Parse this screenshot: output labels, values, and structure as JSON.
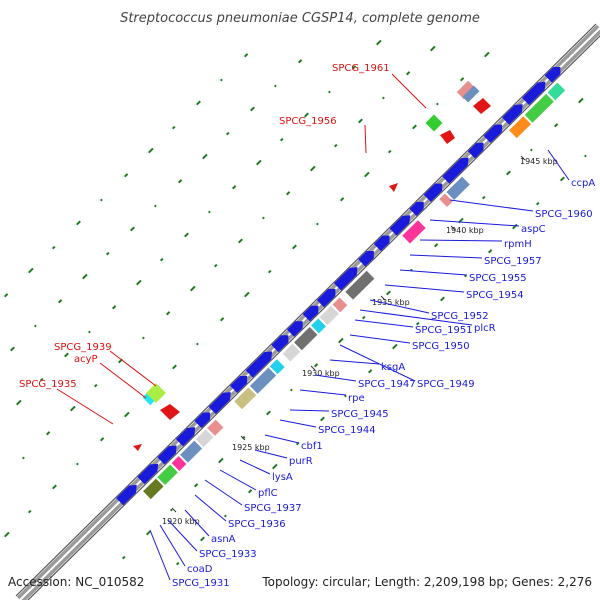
{
  "title": "Streptococcus pneumoniae CGSP14, complete genome",
  "footer": {
    "accession": "Accession: NC_010582",
    "topology": "Topology: circular; Length: 2,209,198 bp; Genes: 2,276"
  },
  "colors": {
    "forward_gene": "#1a1adb",
    "reverse_gene": "#e01515",
    "rna_label": "#dd1111",
    "gene_label": "#1a1adb",
    "backbone": "#888888",
    "gc_tick": "#1f7a1f"
  },
  "scale_ticks": [
    "1920 kbp",
    "1925 kbp",
    "1930 kbp",
    "1935 kbp",
    "1940 kbp",
    "1945 kbp"
  ],
  "blue_labels": [
    "SPCG_1931",
    "coaD",
    "SPCG_1933",
    "asnA",
    "SPCG_1936",
    "SPCG_1937",
    "pflC",
    "lysA",
    "purR",
    "cbf1",
    "SPCG_1944",
    "SPCG_1945",
    "rpe",
    "SPCG_1947",
    "ksgA",
    "SPCG_1949",
    "SPCG_1950",
    "SPCG_1951",
    "plcR",
    "SPCG_1952",
    "SPCG_1954",
    "SPCG_1955",
    "SPCG_1957",
    "rpmH",
    "aspC",
    "SPCG_1960",
    "ccpA"
  ],
  "red_labels": [
    "SPCG_1935",
    "acyP",
    "SPCG_1939",
    "SPCG_1956",
    "SPCG_1961"
  ]
}
